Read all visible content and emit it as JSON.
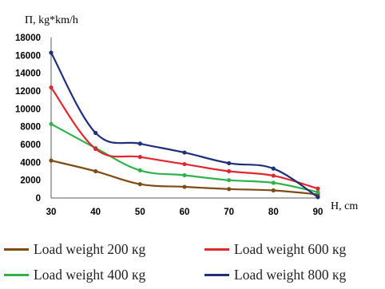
{
  "chart_data": {
    "type": "line",
    "title": "",
    "ylabel": "П, kg*km/h",
    "xlabel": "H, cm",
    "x": [
      30,
      40,
      50,
      60,
      70,
      80,
      90
    ],
    "ylim": [
      0,
      18000
    ],
    "yticks": [
      0,
      2000,
      4000,
      6000,
      8000,
      10000,
      12000,
      14000,
      16000,
      18000
    ],
    "grid": false,
    "legend_position": "bottom",
    "series": [
      {
        "name": "Load weight 200 кg",
        "color": "#7f4a14",
        "values": [
          4200,
          3000,
          1550,
          1250,
          1000,
          850,
          400
        ]
      },
      {
        "name": "Load weight 400 кg",
        "color": "#2fb24b",
        "values": [
          8300,
          5600,
          3100,
          2550,
          2000,
          1700,
          650
        ]
      },
      {
        "name": "Load weight 600 кg",
        "color": "#e0262e",
        "values": [
          12400,
          5500,
          4600,
          3800,
          3000,
          2500,
          1050
        ]
      },
      {
        "name": "Load weight 800 кg",
        "color": "#1f2f78",
        "values": [
          16300,
          7300,
          6100,
          5100,
          3900,
          3300,
          100
        ]
      }
    ]
  }
}
